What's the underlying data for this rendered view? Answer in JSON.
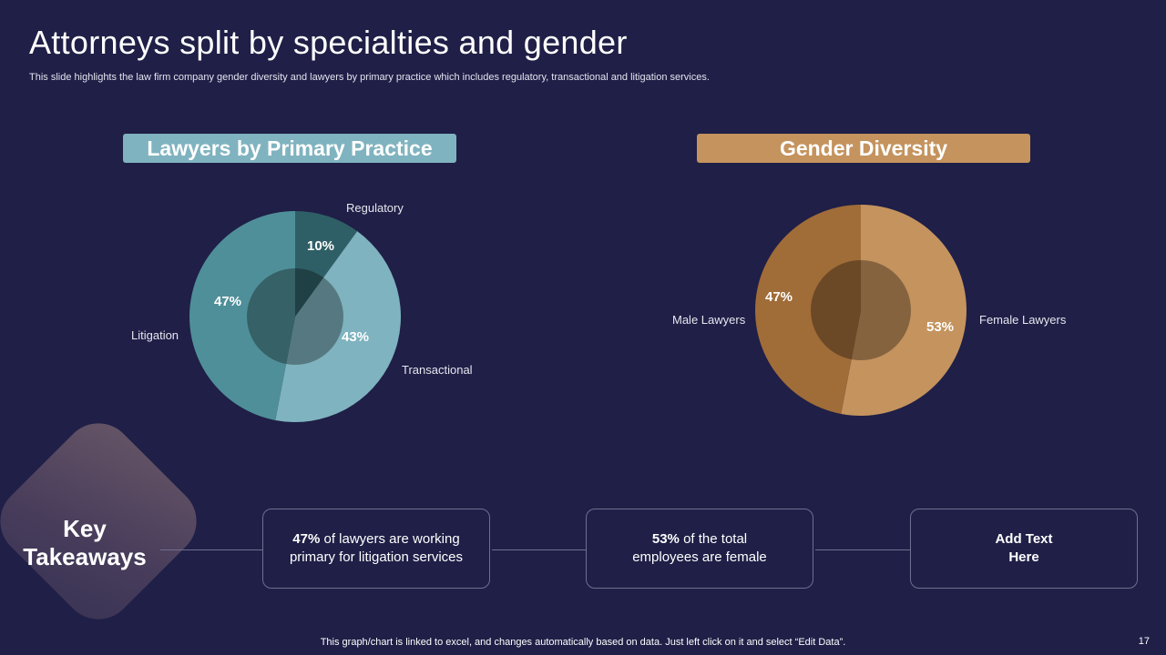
{
  "title": "Attorneys split by specialties and gender",
  "subtitle": "This slide highlights the law firm company gender diversity and lawyers by primary practice which includes regulatory, transactional and litigation services.",
  "chart_data": [
    {
      "type": "pie",
      "title": "Lawyers by Primary Practice",
      "categories": [
        "Regulatory",
        "Transactional",
        "Litigation"
      ],
      "values": [
        10,
        43,
        47
      ],
      "value_labels": [
        "10%",
        "43%",
        "47%"
      ],
      "colors": [
        "#2f5f66",
        "#7fb3bf",
        "#4f8f99"
      ]
    },
    {
      "type": "pie",
      "title": "Gender Diversity",
      "categories": [
        "Female Lawyers",
        "Male Lawyers"
      ],
      "values": [
        53,
        47
      ],
      "value_labels": [
        "53%",
        "47%"
      ],
      "colors": [
        "#c4935e",
        "#a06c38"
      ]
    }
  ],
  "takeaways": {
    "heading_line1": "Key",
    "heading_line2": "Takeaways",
    "items": [
      {
        "bold": "47%",
        "text": " of lawyers  are working primary for litigation services"
      },
      {
        "bold": "53%",
        "text": " of the  total employees are female"
      },
      {
        "bold": "Add Text Here",
        "text": ""
      }
    ]
  },
  "footer": "This graph/chart is linked to excel,  and changes automatically based on data. Just left click on it and select “Edit Data”.",
  "page_number": "17"
}
